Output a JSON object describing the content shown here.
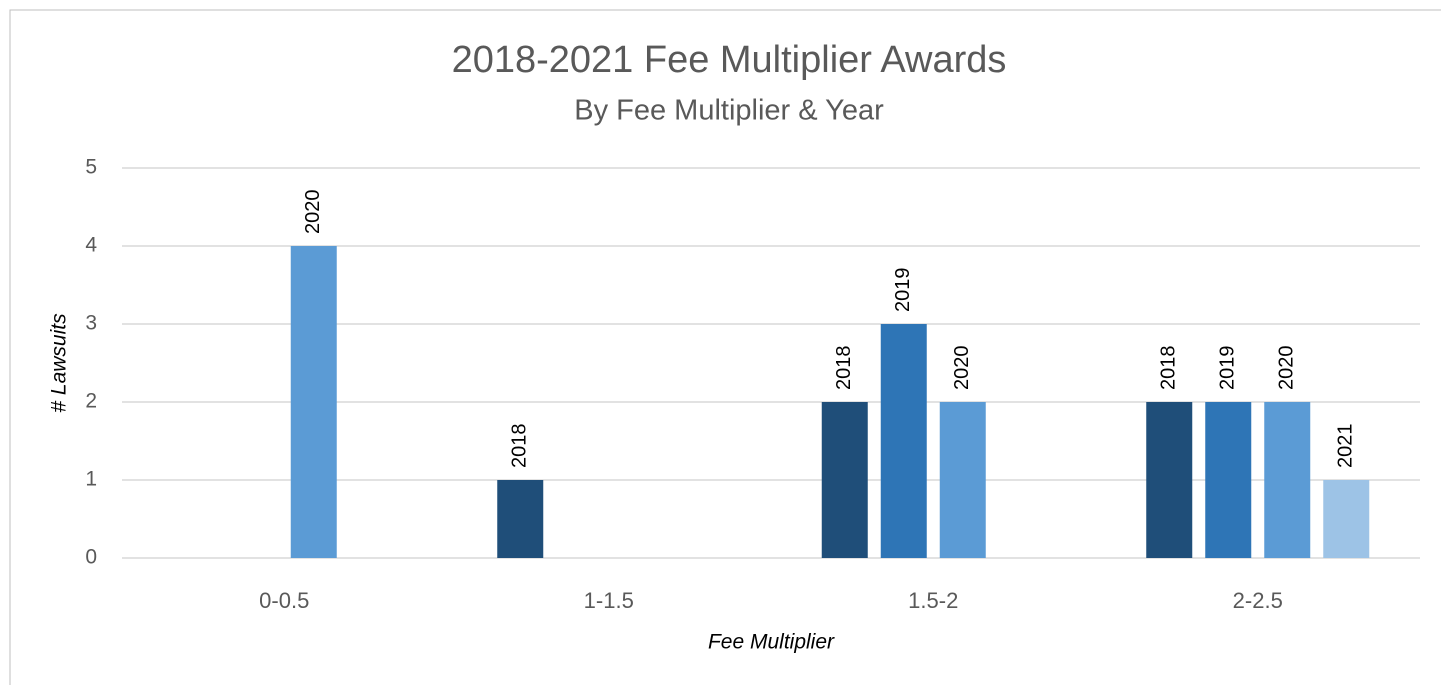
{
  "chart_data": {
    "type": "bar",
    "title": "2018-2021 Fee Multiplier Awards",
    "subtitle": "By Fee Multiplier & Year",
    "x_label": "Fee Multiplier",
    "y_label": "# Lawsuits",
    "categories": [
      "0-0.5",
      "1-1.5",
      "1.5-2",
      "2-2.5"
    ],
    "series": [
      {
        "name": "2018",
        "color": "#1f4e79",
        "values": [
          null,
          1,
          2,
          2
        ]
      },
      {
        "name": "2019",
        "color": "#2e75b6",
        "values": [
          null,
          null,
          3,
          2
        ]
      },
      {
        "name": "2020",
        "color": "#5b9bd5",
        "values": [
          4,
          null,
          2,
          2
        ]
      },
      {
        "name": "2021",
        "color": "#9dc3e6",
        "values": [
          null,
          null,
          null,
          1
        ]
      }
    ],
    "ylim": [
      0,
      5
    ],
    "yticks": [
      0,
      1,
      2,
      3,
      4,
      5
    ],
    "grid": true
  }
}
